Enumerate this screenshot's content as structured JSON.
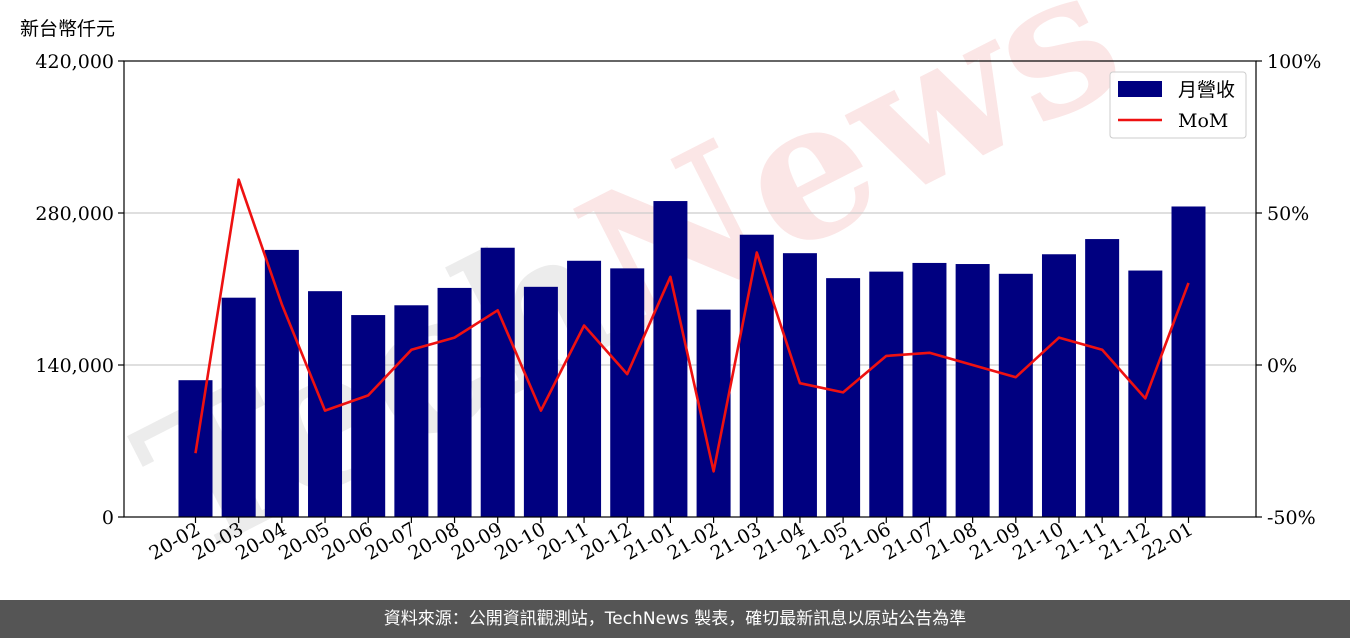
{
  "unit_label": "新台幣仟元",
  "footer": "資料來源：公開資訊觀測站，TechNews 製表，確切最新訊息以原站公告為準",
  "watermark": "TechNews",
  "colors": {
    "bar": "#000080",
    "line": "#ee1111",
    "grid": "#cccccc",
    "footer_bg": "#555555"
  },
  "chart_data": {
    "type": "bar",
    "categories": [
      "20-02",
      "20-03",
      "20-04",
      "20-05",
      "20-06",
      "20-07",
      "20-08",
      "20-09",
      "20-10",
      "20-11",
      "20-12",
      "21-01",
      "21-02",
      "21-03",
      "21-04",
      "21-05",
      "21-06",
      "21-07",
      "21-08",
      "21-09",
      "21-10",
      "21-11",
      "21-12",
      "22-01"
    ],
    "series": [
      {
        "name": "月營收",
        "axis": "left",
        "type": "bar",
        "values": [
          126000,
          202000,
          246000,
          208000,
          186000,
          195000,
          211000,
          248000,
          212000,
          236000,
          229000,
          291000,
          191000,
          260000,
          243000,
          220000,
          226000,
          234000,
          233000,
          224000,
          242000,
          256000,
          227000,
          286000
        ]
      },
      {
        "name": "MoM",
        "axis": "right",
        "type": "line",
        "unit": "%",
        "values": [
          -29,
          61,
          20,
          -15,
          -10,
          5,
          9,
          18,
          -15,
          13,
          -3,
          29,
          -35,
          37,
          -6,
          -9,
          3,
          4,
          0,
          -4,
          9,
          5,
          -11,
          27
        ]
      }
    ],
    "y_left": {
      "range": [
        0,
        420000
      ],
      "ticks": [
        "0",
        "140,000",
        "280,000",
        "420,000"
      ],
      "tick_values": [
        0,
        140000,
        280000,
        420000
      ]
    },
    "y_right": {
      "range": [
        -50,
        100
      ],
      "ticks": [
        "-50%",
        "0%",
        "50%",
        "100%"
      ],
      "tick_values": [
        -50,
        0,
        50,
        100
      ]
    },
    "grid": "horizontal",
    "legend_position": "top-right"
  }
}
